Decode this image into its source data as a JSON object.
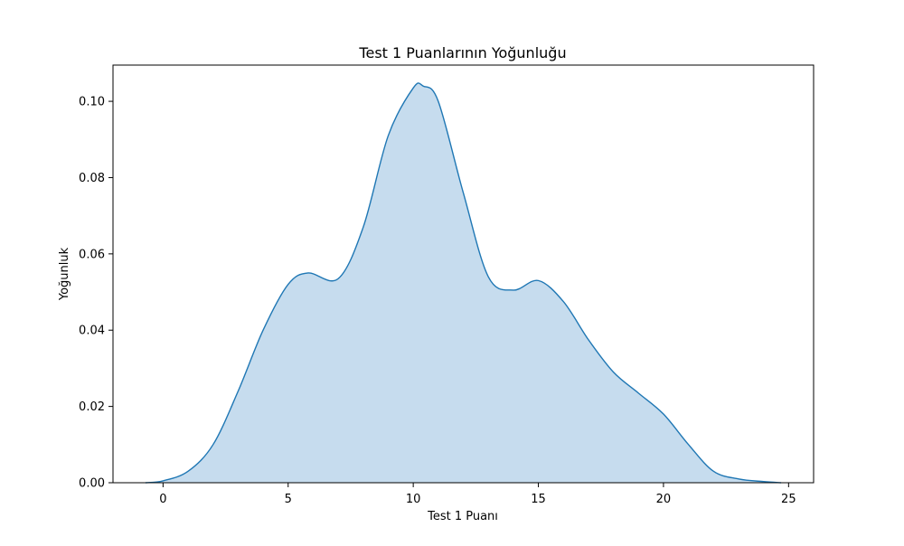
{
  "chart_data": {
    "type": "area",
    "title": "Test 1 Puanlarının Yoğunluğu",
    "xlabel": "Test 1 Puanı",
    "ylabel": "Yoğunluk",
    "xlim": [
      -2,
      26
    ],
    "ylim": [
      0,
      0.1095
    ],
    "xticks": [
      0,
      5,
      10,
      15,
      20,
      25
    ],
    "yticks": [
      0.0,
      0.02,
      0.04,
      0.06,
      0.08,
      0.1
    ],
    "xtick_labels": [
      "0",
      "5",
      "10",
      "15",
      "20",
      "25"
    ],
    "ytick_labels": [
      "0.00",
      "0.02",
      "0.04",
      "0.06",
      "0.08",
      "0.10"
    ],
    "grid": false,
    "legend": "none",
    "colors": {
      "line": "#1f77b4",
      "fill": "#c6dcee"
    },
    "series": [
      {
        "x": [
          -0.7,
          0,
          1,
          2,
          3,
          4,
          5,
          5.8,
          7,
          8,
          9,
          10,
          10.4,
          11,
          12,
          13,
          14,
          15,
          16,
          17,
          18,
          19,
          20,
          21,
          22,
          23,
          24,
          24.7
        ],
        "values": [
          0.0,
          0.0005,
          0.003,
          0.01,
          0.024,
          0.04,
          0.052,
          0.055,
          0.0535,
          0.067,
          0.091,
          0.1035,
          0.104,
          0.1,
          0.076,
          0.054,
          0.0505,
          0.053,
          0.0475,
          0.0375,
          0.029,
          0.0235,
          0.018,
          0.01,
          0.003,
          0.001,
          0.0003,
          0.0
        ]
      }
    ]
  }
}
